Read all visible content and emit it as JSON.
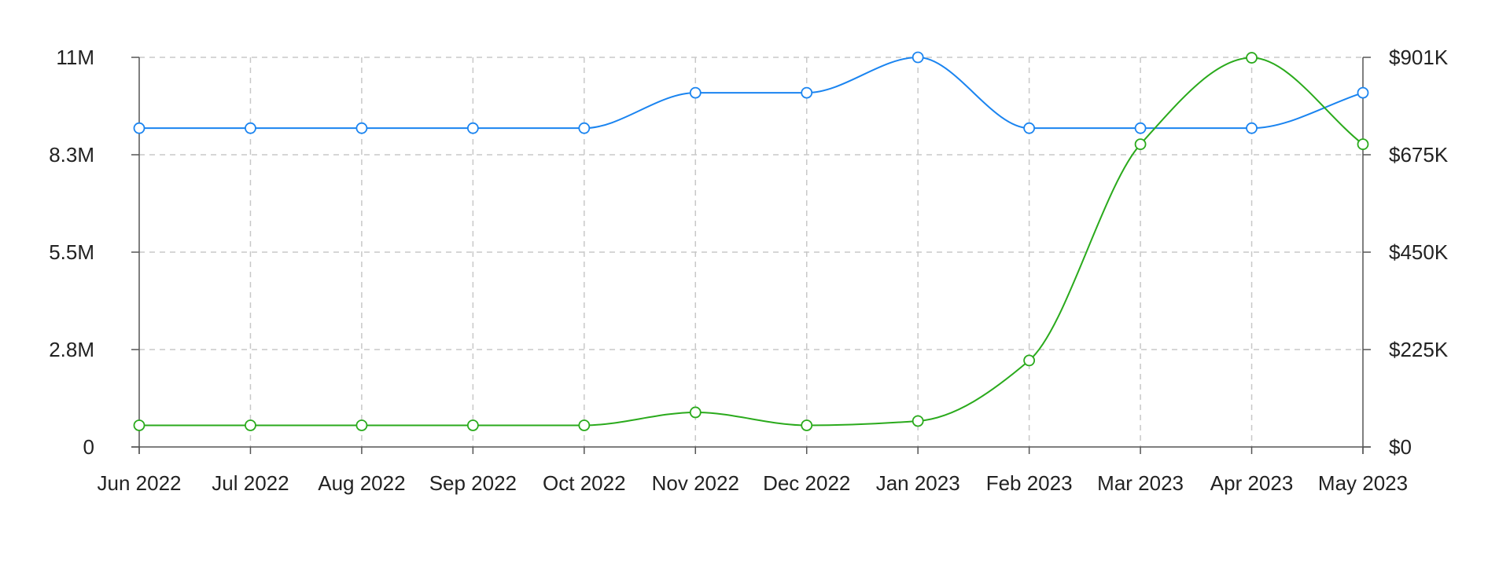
{
  "chart_data": {
    "type": "line",
    "title": "",
    "xlabel": "",
    "ylabel": "",
    "categories": [
      "Jun 2022",
      "Jul 2022",
      "Aug 2022",
      "Sep 2022",
      "Oct 2022",
      "Nov 2022",
      "Dec 2022",
      "Jan 2023",
      "Feb 2023",
      "Mar 2023",
      "Apr 2023",
      "May 2023"
    ],
    "y_left": {
      "ticks": [
        "0",
        "2.8M",
        "5.5M",
        "8.3M",
        "11M"
      ],
      "range": [
        0,
        11000000
      ]
    },
    "y_right": {
      "ticks": [
        "$0",
        "$225K",
        "$450K",
        "$675K",
        "$901K"
      ],
      "range": [
        0,
        901000
      ]
    },
    "grid": true,
    "legend": "none",
    "series": [
      {
        "axis": "left",
        "color": "#1a84f0",
        "values": [
          9000000,
          9000000,
          9000000,
          9000000,
          9000000,
          10000000,
          10000000,
          11000000,
          9000000,
          9000000,
          9000000,
          10000000
        ]
      },
      {
        "axis": "right",
        "color": "#2aaa1c",
        "values": [
          50000,
          50000,
          50000,
          50000,
          50000,
          80000,
          50000,
          60000,
          200000,
          700000,
          900000,
          700000
        ]
      }
    ]
  }
}
